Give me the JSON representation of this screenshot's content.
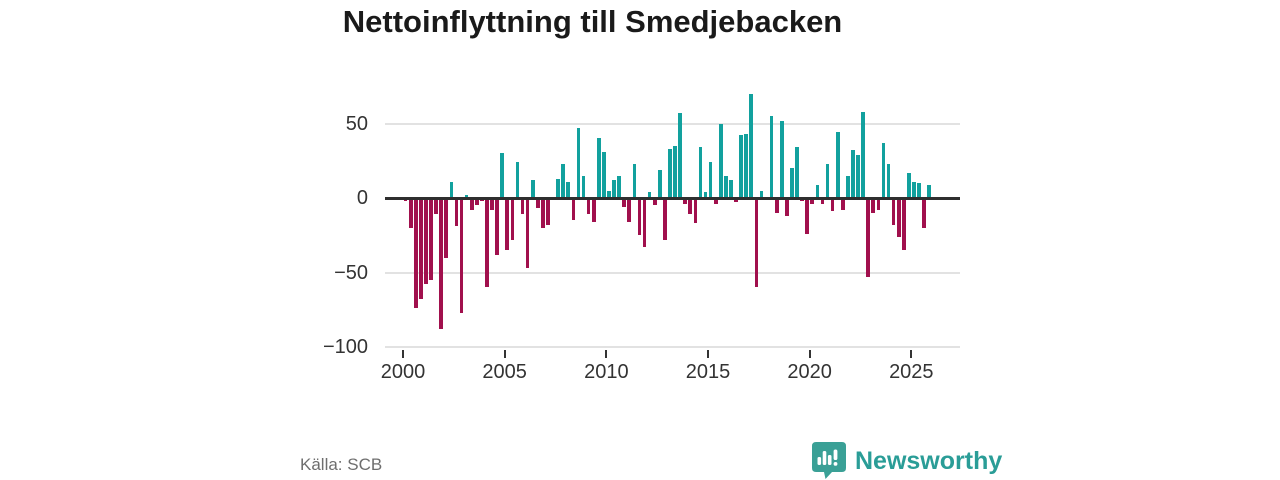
{
  "title": "Nettoinflyttning till Smedjebacken",
  "footer": {
    "source": "Källa: SCB",
    "brand": "Newsworthy"
  },
  "chart_data": {
    "type": "bar",
    "title": "Nettoinflyttning till Smedjebacken",
    "start": "2000-Q1",
    "frequency": "quarterly",
    "values": [
      -2,
      -20,
      -74,
      -68,
      -58,
      -55,
      -11,
      -88,
      -40,
      11,
      -19,
      -77,
      2,
      -8,
      -5,
      -2,
      -60,
      -8,
      -38,
      30,
      -35,
      -28,
      24,
      -11,
      -47,
      12,
      -7,
      -20,
      -18,
      1,
      13,
      23,
      11,
      -15,
      47,
      15,
      -11,
      -16,
      40,
      31,
      5,
      12,
      15,
      -6,
      -16,
      23,
      -25,
      -33,
      4,
      -5,
      19,
      -28,
      33,
      35,
      57,
      -4,
      -11,
      -17,
      34,
      4,
      24,
      -4,
      50,
      15,
      12,
      -3,
      42,
      43,
      70,
      -60,
      5,
      0,
      55,
      -10,
      52,
      -12,
      20,
      34,
      -2,
      -24,
      -4,
      9,
      -4,
      23,
      -9,
      44,
      -8,
      15,
      32,
      29,
      58,
      -53,
      -10,
      -8,
      37,
      23,
      -18,
      -26,
      -35,
      17,
      11,
      10,
      -20,
      9
    ],
    "xticks": [
      2000,
      2005,
      2010,
      2015,
      2020,
      2025
    ],
    "yticks": [
      50,
      0,
      -50,
      -100
    ],
    "ylim": [
      -100,
      70
    ],
    "grid": true,
    "legend_position": "none",
    "colors": {
      "positive": "#12a19e",
      "negative": "#a1104d",
      "grid": "#e2e2e2",
      "axis_text": "#333333",
      "zero_line": "#2f2f2f"
    }
  }
}
